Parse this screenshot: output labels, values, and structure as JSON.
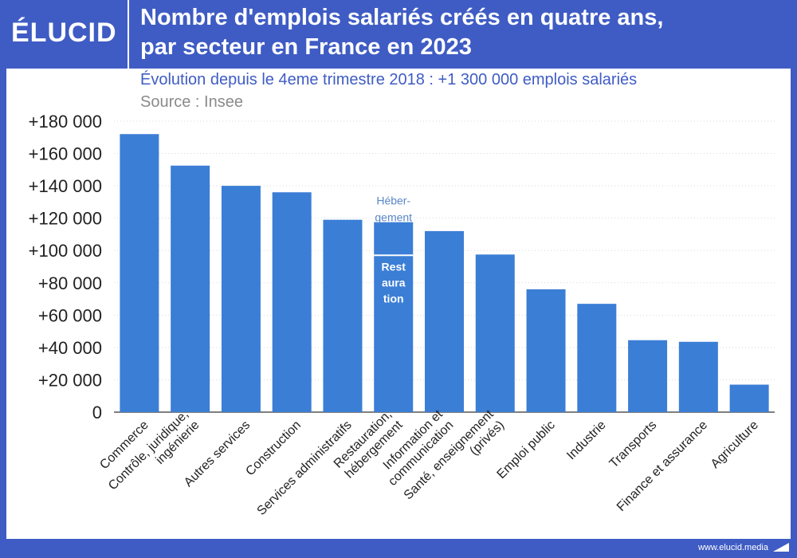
{
  "header": {
    "logo": "ÉLUCID",
    "title_line1": "Nombre d'emplois salariés créés en quatre ans,",
    "title_line2": "par secteur en France en 2023"
  },
  "subtitle": "Évolution depuis le 4eme trimestre 2018 : +1 300 000 emplois salariés",
  "source": "Source : Insee",
  "footer": "www.elucid.media",
  "colors": {
    "frame": "#3f5cc4",
    "bar": "#3b7ed6",
    "hebergement_label": "#5a86c8"
  },
  "chart_data": {
    "type": "bar",
    "categories": [
      [
        "Commerce"
      ],
      [
        "Contrôle, juridique,",
        "ingénierie"
      ],
      [
        "Autres services"
      ],
      [
        "Construction"
      ],
      [
        "Services administratifs"
      ],
      [
        "Restauration,",
        "hébergement"
      ],
      [
        "Information et",
        "communication"
      ],
      [
        "Santé, enseignement",
        "(privés)"
      ],
      [
        "Emploi public"
      ],
      [
        "Industrie"
      ],
      [
        "Transports"
      ],
      [
        "Finance et assurance"
      ],
      [
        "Agriculture"
      ]
    ],
    "values": [
      172000,
      152500,
      140000,
      136000,
      119000,
      117500,
      112000,
      97500,
      76000,
      67000,
      44500,
      43500,
      17000
    ],
    "stack_split": {
      "category_index": 5,
      "lower_value": 97000,
      "lower_label": "Rest aura tion",
      "upper_label": "Héber- gement"
    },
    "ylim": [
      0,
      180000
    ],
    "yticks": [
      0,
      20000,
      40000,
      60000,
      80000,
      100000,
      120000,
      140000,
      160000,
      180000
    ],
    "ytick_labels": [
      "0",
      "+20 000",
      "+40 000",
      "+60 000",
      "+80 000",
      "+100 000",
      "+120 000",
      "+140 000",
      "+160 000",
      "+180 000"
    ],
    "grid": true
  }
}
